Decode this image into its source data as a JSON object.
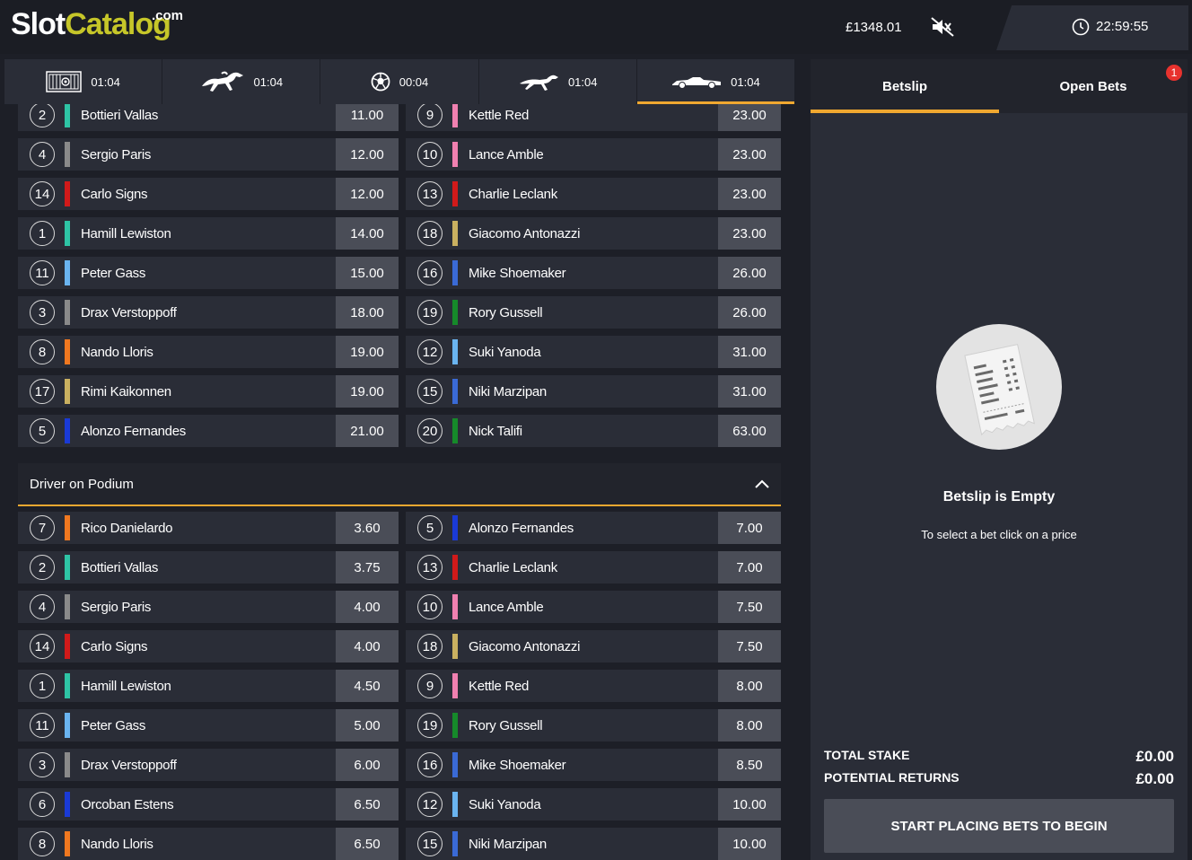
{
  "header": {
    "logo_slot": "Slot",
    "logo_catalog": "Catalog",
    "logo_com": ".com",
    "balance": "£1348.01",
    "time": "22:59:55"
  },
  "sport_tabs": [
    {
      "icon": "greyhound-trap-icon",
      "time": "01:04",
      "active": false
    },
    {
      "icon": "horse-racing-icon",
      "time": "01:04",
      "active": false
    },
    {
      "icon": "football-icon",
      "time": "00:04",
      "active": false
    },
    {
      "icon": "greyhound-icon",
      "time": "01:04",
      "active": false
    },
    {
      "icon": "race-car-icon",
      "time": "01:04",
      "active": true
    }
  ],
  "win_market": {
    "left": [
      {
        "num": "2",
        "name": "Bottieri Vallas",
        "price": "11.00",
        "color": "#2ec4a5"
      },
      {
        "num": "4",
        "name": "Sergio Paris",
        "price": "12.00",
        "color": "#8a8a8a"
      },
      {
        "num": "14",
        "name": "Carlo Signs",
        "price": "12.00",
        "color": "#d11a1a"
      },
      {
        "num": "1",
        "name": "Hamill Lewiston",
        "price": "14.00",
        "color": "#2ec4a5"
      },
      {
        "num": "11",
        "name": "Peter Gass",
        "price": "15.00",
        "color": "#6ab4f0"
      },
      {
        "num": "3",
        "name": "Drax Verstoppoff",
        "price": "18.00",
        "color": "#8a8a8a"
      },
      {
        "num": "8",
        "name": "Nando Lloris",
        "price": "19.00",
        "color": "#f07820"
      },
      {
        "num": "17",
        "name": "Rimi Kaikonnen",
        "price": "19.00",
        "color": "#c9b060"
      },
      {
        "num": "5",
        "name": "Alonzo Fernandes",
        "price": "21.00",
        "color": "#1a3ad6"
      }
    ],
    "right": [
      {
        "num": "9",
        "name": "Kettle Red",
        "price": "23.00",
        "color": "#f080b0"
      },
      {
        "num": "10",
        "name": "Lance Amble",
        "price": "23.00",
        "color": "#f080b0"
      },
      {
        "num": "13",
        "name": "Charlie Leclank",
        "price": "23.00",
        "color": "#d11a1a"
      },
      {
        "num": "18",
        "name": "Giacomo Antonazzi",
        "price": "23.00",
        "color": "#c9b060"
      },
      {
        "num": "16",
        "name": "Mike Shoemaker",
        "price": "26.00",
        "color": "#3a6ad6"
      },
      {
        "num": "19",
        "name": "Rory Gussell",
        "price": "26.00",
        "color": "#168a2a"
      },
      {
        "num": "12",
        "name": "Suki Yanoda",
        "price": "31.00",
        "color": "#6ab4f0"
      },
      {
        "num": "15",
        "name": "Niki Marzipan",
        "price": "31.00",
        "color": "#3a6ad6"
      },
      {
        "num": "20",
        "name": "Nick Talifi",
        "price": "63.00",
        "color": "#168a2a"
      }
    ]
  },
  "podium_market": {
    "title": "Driver on Podium",
    "left": [
      {
        "num": "7",
        "name": "Rico Danielardo",
        "price": "3.60",
        "color": "#f07820"
      },
      {
        "num": "2",
        "name": "Bottieri Vallas",
        "price": "3.75",
        "color": "#2ec4a5"
      },
      {
        "num": "4",
        "name": "Sergio Paris",
        "price": "4.00",
        "color": "#8a8a8a"
      },
      {
        "num": "14",
        "name": "Carlo Signs",
        "price": "4.00",
        "color": "#d11a1a"
      },
      {
        "num": "1",
        "name": "Hamill Lewiston",
        "price": "4.50",
        "color": "#2ec4a5"
      },
      {
        "num": "11",
        "name": "Peter Gass",
        "price": "5.00",
        "color": "#6ab4f0"
      },
      {
        "num": "3",
        "name": "Drax Verstoppoff",
        "price": "6.00",
        "color": "#8a8a8a"
      },
      {
        "num": "6",
        "name": "Orcoban Estens",
        "price": "6.50",
        "color": "#1a3ad6"
      },
      {
        "num": "8",
        "name": "Nando Lloris",
        "price": "6.50",
        "color": "#f07820"
      }
    ],
    "right": [
      {
        "num": "5",
        "name": "Alonzo Fernandes",
        "price": "7.00",
        "color": "#1a3ad6"
      },
      {
        "num": "13",
        "name": "Charlie Leclank",
        "price": "7.00",
        "color": "#d11a1a"
      },
      {
        "num": "10",
        "name": "Lance Amble",
        "price": "7.50",
        "color": "#f080b0"
      },
      {
        "num": "18",
        "name": "Giacomo Antonazzi",
        "price": "7.50",
        "color": "#c9b060"
      },
      {
        "num": "9",
        "name": "Kettle Red",
        "price": "8.00",
        "color": "#f080b0"
      },
      {
        "num": "19",
        "name": "Rory Gussell",
        "price": "8.00",
        "color": "#168a2a"
      },
      {
        "num": "16",
        "name": "Mike Shoemaker",
        "price": "8.50",
        "color": "#3a6ad6"
      },
      {
        "num": "12",
        "name": "Suki Yanoda",
        "price": "10.00",
        "color": "#6ab4f0"
      },
      {
        "num": "15",
        "name": "Niki Marzipan",
        "price": "10.00",
        "color": "#3a6ad6"
      }
    ]
  },
  "betslip": {
    "tab_betslip": "Betslip",
    "tab_open_bets": "Open Bets",
    "open_bets_count": "1",
    "empty_title": "Betslip is Empty",
    "empty_subtitle": "To select a bet click on a price",
    "total_stake_label": "TOTAL STAKE",
    "total_stake_value": "£0.00",
    "potential_returns_label": "POTENTIAL RETURNS",
    "potential_returns_value": "£0.00",
    "start_button": "START PLACING BETS TO BEGIN"
  },
  "colors": {
    "accent": "#f0a830",
    "panel": "#2a2d37",
    "price_box": "#4a4d57",
    "background": "#1d1f27"
  }
}
